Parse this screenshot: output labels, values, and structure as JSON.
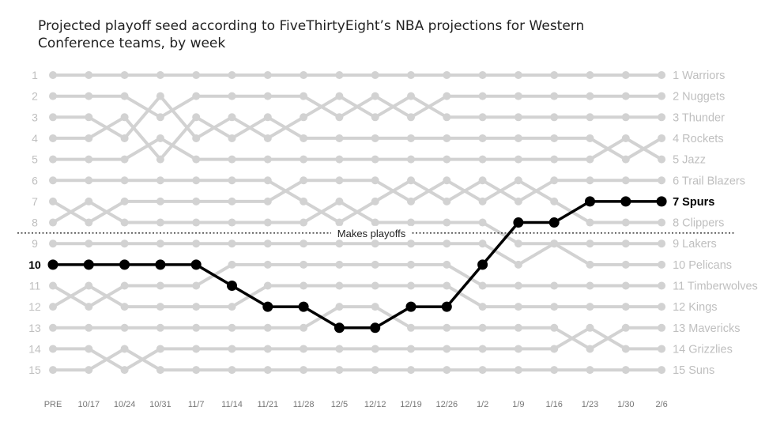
{
  "chart_data": {
    "type": "line",
    "title": "Projected playoff seed according to FiveThirtyEight’s NBA projections for Western Conference teams, by week",
    "x": [
      "PRE",
      "10/17",
      "10/24",
      "10/31",
      "11/7",
      "11/14",
      "11/21",
      "11/28",
      "12/5",
      "12/12",
      "12/19",
      "12/26",
      "1/2",
      "1/9",
      "1/16",
      "1/23",
      "1/30",
      "2/6"
    ],
    "y_ticks": [
      1,
      2,
      3,
      4,
      5,
      6,
      7,
      8,
      9,
      10,
      11,
      12,
      13,
      14,
      15
    ],
    "ylim": [
      1,
      15
    ],
    "y_inverted": true,
    "playoff_line": {
      "after_seed": 8,
      "label": "Makes playoffs"
    },
    "highlight": {
      "name": "Spurs",
      "start_label": "10",
      "end_label": "7 Spurs",
      "color": "#000000",
      "values": [
        10,
        10,
        10,
        10,
        10,
        11,
        12,
        12,
        13,
        13,
        12,
        12,
        10,
        8,
        8,
        7,
        7,
        7
      ]
    },
    "end_labels": [
      "1 Warriors",
      "2 Nuggets",
      "3 Thunder",
      "4 Rockets",
      "5 Jazz",
      "6 Trail Blazers",
      "8 Clippers",
      "9 Lakers",
      "10 Pelicans",
      "11 Timberwolves",
      "12 Kings",
      "13 Mavericks",
      "14 Grizzlies",
      "15 Suns"
    ],
    "series": [
      {
        "values": [
          1,
          1,
          1,
          1,
          1,
          1,
          1,
          1,
          1,
          1,
          1,
          1,
          1,
          1,
          1,
          1,
          1,
          1
        ]
      },
      {
        "values": [
          2,
          2,
          2,
          3,
          2,
          2,
          2,
          2,
          3,
          2,
          3,
          2,
          2,
          2,
          2,
          2,
          2,
          2
        ]
      },
      {
        "values": [
          3,
          3,
          4,
          2,
          4,
          3,
          4,
          3,
          2,
          3,
          2,
          3,
          3,
          3,
          3,
          3,
          3,
          3
        ]
      },
      {
        "values": [
          4,
          4,
          3,
          5,
          3,
          4,
          3,
          4,
          4,
          4,
          4,
          4,
          4,
          4,
          4,
          4,
          5,
          4
        ]
      },
      {
        "values": [
          5,
          5,
          5,
          4,
          5,
          5,
          5,
          5,
          5,
          5,
          5,
          5,
          5,
          5,
          5,
          5,
          4,
          5
        ]
      },
      {
        "values": [
          6,
          6,
          6,
          6,
          6,
          6,
          6,
          7,
          8,
          7,
          6,
          7,
          6,
          7,
          6,
          6,
          6,
          6
        ]
      },
      {
        "values": [
          7,
          8,
          7,
          7,
          7,
          7,
          7,
          6,
          6,
          6,
          7,
          6,
          7,
          6,
          7,
          8,
          8,
          8
        ]
      },
      {
        "values": [
          8,
          7,
          8,
          8,
          8,
          8,
          8,
          8,
          7,
          8,
          8,
          8,
          8,
          9,
          9,
          9,
          9,
          9
        ]
      },
      {
        "values": [
          9,
          9,
          9,
          9,
          9,
          9,
          9,
          9,
          9,
          9,
          9,
          9,
          9,
          10,
          9,
          10,
          10,
          10
        ]
      },
      {
        "values": [
          11,
          12,
          11,
          11,
          11,
          10,
          10,
          10,
          10,
          10,
          10,
          10,
          11,
          11,
          11,
          11,
          11,
          11
        ]
      },
      {
        "values": [
          12,
          11,
          12,
          12,
          12,
          12,
          11,
          11,
          11,
          11,
          11,
          11,
          12,
          12,
          12,
          12,
          12,
          12
        ]
      },
      {
        "values": [
          13,
          13,
          13,
          13,
          13,
          13,
          13,
          13,
          12,
          12,
          13,
          13,
          13,
          13,
          13,
          14,
          13,
          13
        ]
      },
      {
        "values": [
          14,
          14,
          15,
          14,
          14,
          14,
          14,
          14,
          14,
          14,
          14,
          14,
          14,
          14,
          14,
          13,
          14,
          14
        ]
      },
      {
        "values": [
          15,
          15,
          14,
          15,
          15,
          15,
          15,
          15,
          15,
          15,
          15,
          15,
          15,
          15,
          15,
          15,
          15,
          15
        ]
      }
    ],
    "colors": {
      "background_lines": "#d2d2d2",
      "highlight": "#000000",
      "axis_text": "#bfbfbf",
      "tick_text": "#777777"
    }
  }
}
